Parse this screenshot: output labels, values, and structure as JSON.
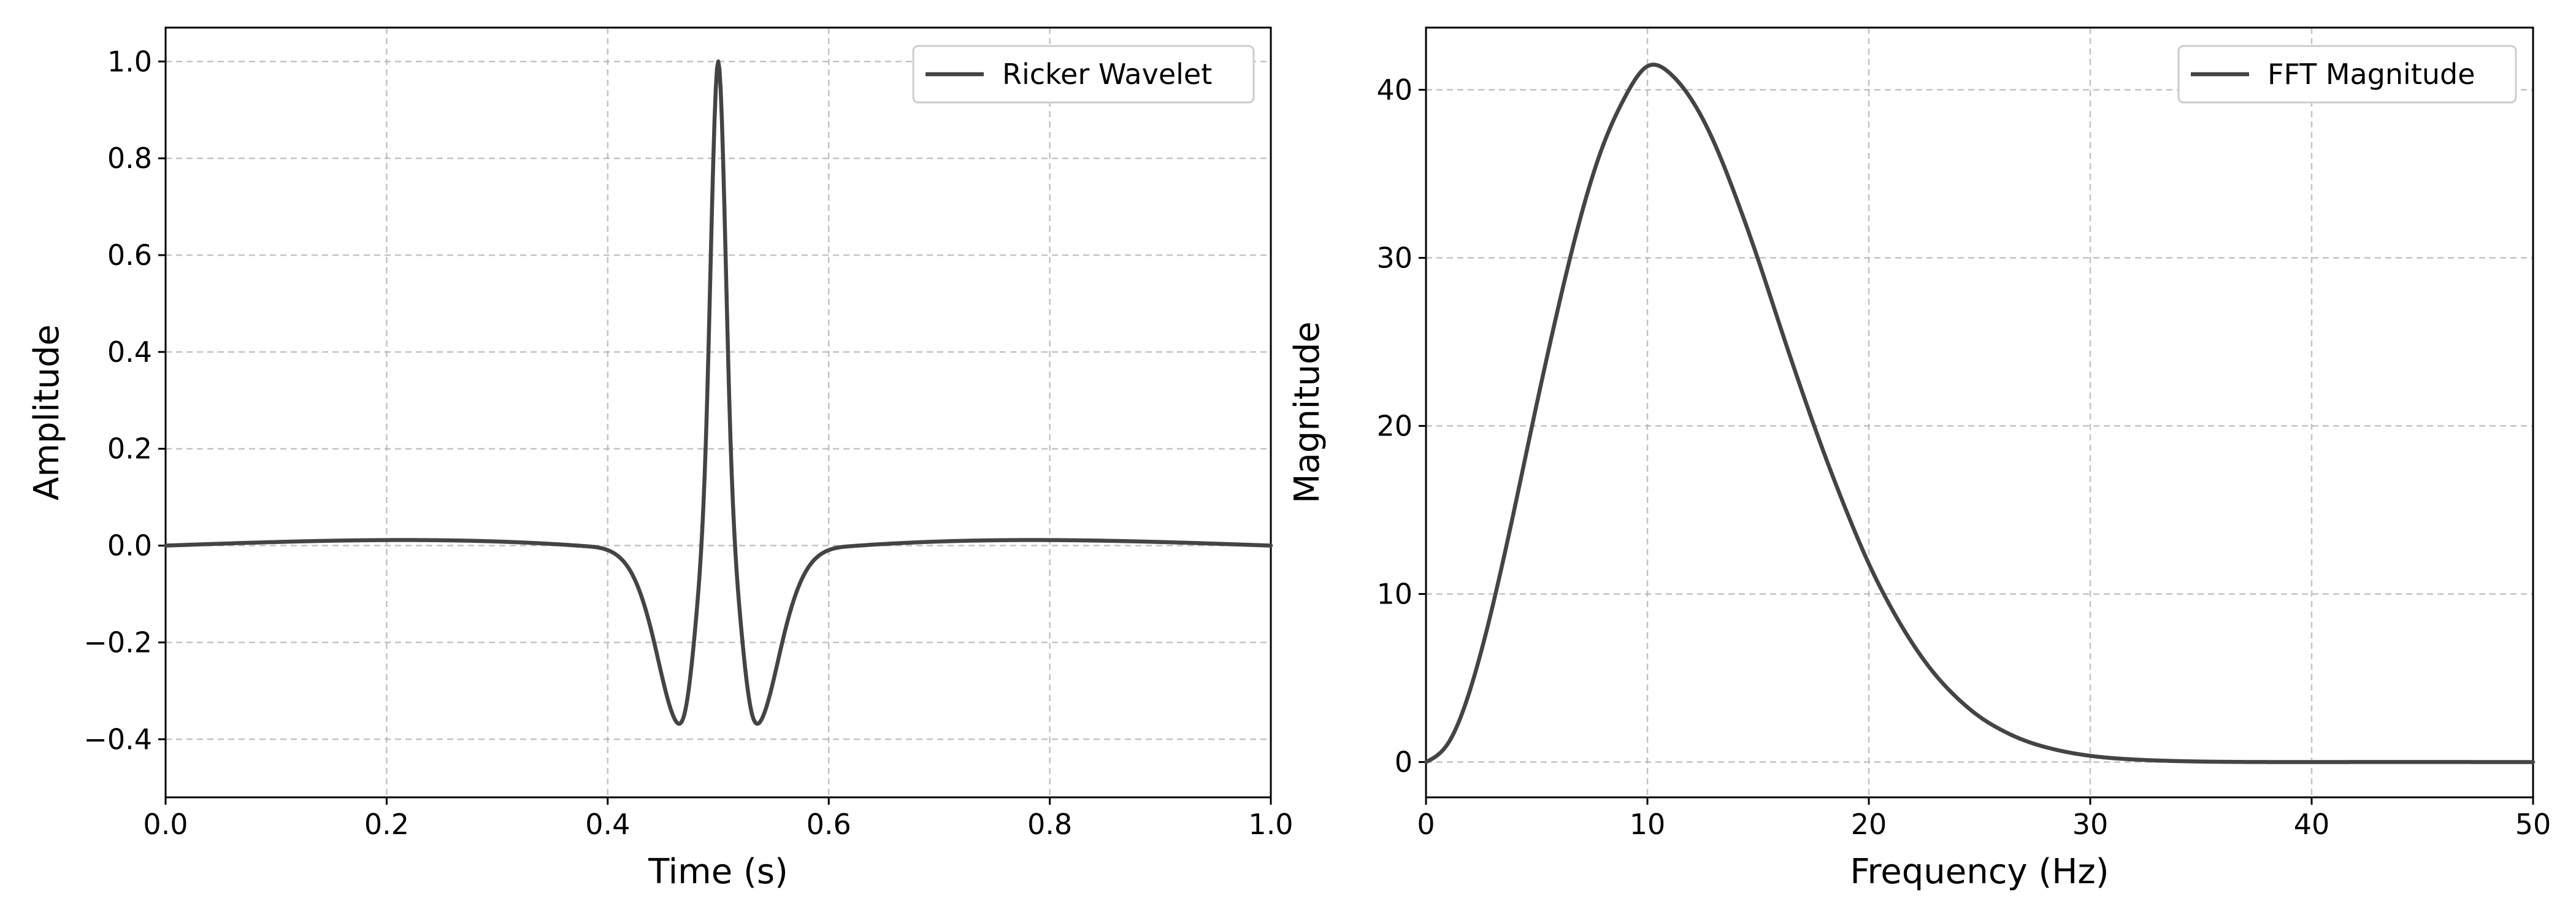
{
  "colors": {
    "line": "#444444",
    "grid": "#b0b0b0",
    "frame": "#000000"
  },
  "chart_data": [
    {
      "type": "line",
      "title": "",
      "xlabel": "Time (s)",
      "ylabel": "Amplitude",
      "xlim": [
        0.0,
        1.0
      ],
      "ylim": [
        -0.52,
        1.07
      ],
      "xticks": [
        0.0,
        0.2,
        0.4,
        0.6,
        0.8,
        1.0
      ],
      "xtick_labels": [
        "0.0",
        "0.2",
        "0.4",
        "0.6",
        "0.8",
        "1.0"
      ],
      "yticks": [
        -0.4,
        -0.2,
        0.0,
        0.2,
        0.4,
        0.6,
        0.8,
        1.0
      ],
      "ytick_labels": [
        "−0.4",
        "−0.2",
        "0.0",
        "0.2",
        "0.4",
        "0.6",
        "0.8",
        "1.0"
      ],
      "grid": true,
      "legend": {
        "position": "upper-right",
        "entries": [
          "Ricker Wavelet"
        ]
      },
      "series": [
        {
          "name": "Ricker Wavelet",
          "x": [
            0.0,
            0.38,
            0.39,
            0.4,
            0.41,
            0.42,
            0.43,
            0.44,
            0.45,
            0.46,
            0.47,
            0.48,
            0.49,
            0.5,
            0.51,
            0.52,
            0.53,
            0.54,
            0.55,
            0.56,
            0.57,
            0.58,
            0.59,
            0.6,
            0.61,
            0.62,
            1.0
          ],
          "y": [
            0.0,
            -0.0012,
            -0.0035,
            -0.0093,
            -0.0228,
            -0.0505,
            -0.1013,
            -0.1803,
            -0.2784,
            -0.3555,
            -0.3427,
            -0.1499,
            0.302,
            1.0,
            0.302,
            -0.1499,
            -0.3427,
            -0.3555,
            -0.2784,
            -0.1803,
            -0.1013,
            -0.0505,
            -0.0228,
            -0.0093,
            -0.0035,
            -0.0012,
            0.0
          ]
        }
      ]
    },
    {
      "type": "line",
      "title": "",
      "xlabel": "Frequency (Hz)",
      "ylabel": "Magnitude",
      "xlim": [
        0,
        50
      ],
      "ylim": [
        -2.1,
        43.7
      ],
      "xticks": [
        0,
        10,
        20,
        30,
        40,
        50
      ],
      "xtick_labels": [
        "0",
        "10",
        "20",
        "30",
        "40",
        "50"
      ],
      "yticks": [
        0,
        10,
        20,
        30,
        40
      ],
      "ytick_labels": [
        "0",
        "10",
        "20",
        "30",
        "40"
      ],
      "grid": true,
      "legend": {
        "position": "upper-right",
        "entries": [
          "FFT Magnitude"
        ]
      },
      "series": [
        {
          "name": "FFT Magnitude",
          "x": [
            0,
            1,
            2,
            3,
            4,
            5,
            6,
            7,
            8,
            9,
            10,
            11,
            12,
            13,
            14,
            15,
            16,
            17,
            18,
            19,
            20,
            21,
            22,
            23,
            24,
            25,
            26,
            27,
            28,
            29,
            30,
            32,
            35,
            40,
            50
          ],
          "y": [
            0.0,
            1.12,
            4.33,
            9.23,
            15.1,
            21.3,
            27.2,
            32.5,
            36.7,
            39.6,
            41.4,
            41.0,
            39.4,
            36.9,
            33.6,
            29.9,
            25.9,
            22.0,
            18.3,
            14.9,
            11.8,
            9.2,
            7.0,
            5.2,
            3.8,
            2.7,
            1.9,
            1.3,
            0.88,
            0.58,
            0.37,
            0.15,
            0.03,
            0.0,
            0.0
          ]
        }
      ]
    }
  ]
}
